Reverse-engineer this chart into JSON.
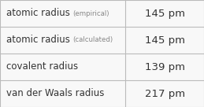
{
  "rows": [
    {
      "label": "atomic radius",
      "sublabel": "(empirical)",
      "value": "145 pm"
    },
    {
      "label": "atomic radius",
      "sublabel": "(calculated)",
      "value": "145 pm"
    },
    {
      "label": "covalent radius",
      "sublabel": "",
      "value": "139 pm"
    },
    {
      "label": "van der Waals radius",
      "sublabel": "",
      "value": "217 pm"
    }
  ],
  "col_split": 0.615,
  "background_color": "#f8f8f8",
  "border_color": "#bbbbbb",
  "text_color": "#333333",
  "sublabel_color": "#888888",
  "label_fontsize": 8.5,
  "sublabel_fontsize": 6.2,
  "value_fontsize": 9.5,
  "fig_width": 2.59,
  "fig_height": 1.36,
  "dpi": 100
}
